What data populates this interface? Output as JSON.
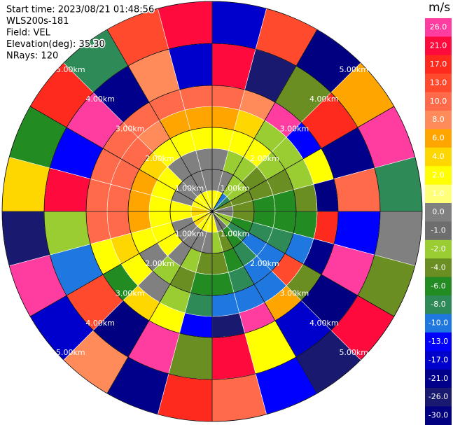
{
  "chart_data": {
    "type": "ppi",
    "info": [
      "Start time: 2023/08/21 01:48:56",
      "WLS200s-181",
      "Field: VEL",
      "Elevation(deg): 35.30",
      "NRays: 120"
    ],
    "colorbar_label": "m/s",
    "colorbar_ticks": [
      {
        "value": 26,
        "label": "26.0"
      },
      {
        "value": 21,
        "label": "21.0"
      },
      {
        "value": 17,
        "label": "17.0"
      },
      {
        "value": 13,
        "label": "13.0"
      },
      {
        "value": 10,
        "label": "10.0"
      },
      {
        "value": 8,
        "label": "8.0"
      },
      {
        "value": 6,
        "label": "6.0"
      },
      {
        "value": 4,
        "label": "4.0"
      },
      {
        "value": 2,
        "label": "2.0"
      },
      {
        "value": 1,
        "label": "1.0"
      },
      {
        "value": 0,
        "label": "0.0"
      },
      {
        "value": -1,
        "label": "-1.0"
      },
      {
        "value": -2,
        "label": "-2.0"
      },
      {
        "value": -4,
        "label": "-4.0"
      },
      {
        "value": -6,
        "label": "-6.0"
      },
      {
        "value": -8,
        "label": "-8.0"
      },
      {
        "value": -10,
        "label": "-10.0"
      },
      {
        "value": -13,
        "label": "-13.0"
      },
      {
        "value": -17,
        "label": "-17.0"
      },
      {
        "value": -21,
        "label": "-21.0"
      },
      {
        "value": -26,
        "label": "-26.0"
      },
      {
        "value": -30,
        "label": "-30.0"
      }
    ],
    "colors": [
      "#ff3da0",
      "#ff0a3c",
      "#ff2a1e",
      "#ff4a2e",
      "#ff6a4a",
      "#ff8a5a",
      "#ffa500",
      "#ffd700",
      "#ffff00",
      "#ffff7a",
      "#808080",
      "#6e6e6e",
      "#9acd32",
      "#6b8e23",
      "#228b22",
      "#2e8b57",
      "#1e78e0",
      "#0000ff",
      "#0000cd",
      "#00008b",
      "#191970",
      "#000080"
    ],
    "rlim": [
      0,
      5
    ],
    "rticks": [
      {
        "value": 1,
        "label": "1.00km"
      },
      {
        "value": 2,
        "label": "2.00km"
      },
      {
        "value": 3,
        "label": "3.00km"
      },
      {
        "value": 4,
        "label": "4.00km"
      },
      {
        "value": 5,
        "label": "5.00km"
      }
    ],
    "azimuth": [
      0,
      15,
      30,
      45,
      60,
      75,
      90,
      105,
      120,
      135,
      150,
      165,
      180,
      195,
      210,
      225,
      240,
      255,
      270,
      285,
      300,
      315,
      330,
      345,
      360
    ],
    "range_km": [
      0,
      0.5,
      1,
      1.5,
      2,
      2.5,
      3,
      4,
      5
    ],
    "values": [
      [
        2,
        0,
        0,
        2,
        6,
        10,
        21,
        -17
      ],
      [
        2,
        0,
        -2,
        2,
        4,
        8,
        -26,
        13
      ],
      [
        -10,
        -2,
        -2,
        2,
        -2,
        26,
        -4,
        -30
      ],
      [
        -8,
        -2,
        -4,
        -2,
        -2,
        -13,
        17,
        6
      ],
      [
        -4,
        -4,
        -4,
        -4,
        -2,
        2,
        -21,
        26
      ],
      [
        0,
        -4,
        -6,
        -6,
        -4,
        -30,
        10,
        -8
      ],
      [
        0,
        -4,
        -6,
        -6,
        -6,
        17,
        -13,
        0
      ],
      [
        -2,
        -6,
        -8,
        -8,
        -10,
        -21,
        26,
        -4
      ],
      [
        -2,
        -8,
        -10,
        -10,
        13,
        -4,
        -30,
        21
      ],
      [
        -1,
        -6,
        -8,
        -10,
        -10,
        6,
        -17,
        -26
      ],
      [
        0,
        -4,
        -6,
        -8,
        -10,
        26,
        2,
        -13
      ],
      [
        2,
        -2,
        -4,
        -6,
        -10,
        -26,
        21,
        10
      ],
      [
        2,
        0,
        -4,
        -6,
        -8,
        -13,
        -4,
        17
      ],
      [
        2,
        0,
        -2,
        -4,
        -2,
        2,
        26,
        -21
      ],
      [
        2,
        0,
        0,
        -2,
        0,
        4,
        -30,
        8
      ],
      [
        4,
        0,
        2,
        0,
        2,
        -6,
        13,
        -17
      ],
      [
        2,
        0,
        2,
        2,
        4,
        2,
        -10,
        26
      ],
      [
        4,
        2,
        2,
        6,
        10,
        10,
        -2,
        -26
      ],
      [
        4,
        2,
        2,
        6,
        10,
        10,
        21,
        4
      ],
      [
        2,
        0,
        2,
        6,
        10,
        10,
        -13,
        -6
      ],
      [
        2,
        0,
        2,
        4,
        10,
        10,
        26,
        17
      ],
      [
        2,
        0,
        0,
        2,
        8,
        10,
        -21,
        -8
      ],
      [
        2,
        0,
        0,
        2,
        6,
        10,
        8,
        13
      ],
      [
        2,
        0,
        0,
        2,
        6,
        10,
        -17,
        21
      ]
    ]
  }
}
